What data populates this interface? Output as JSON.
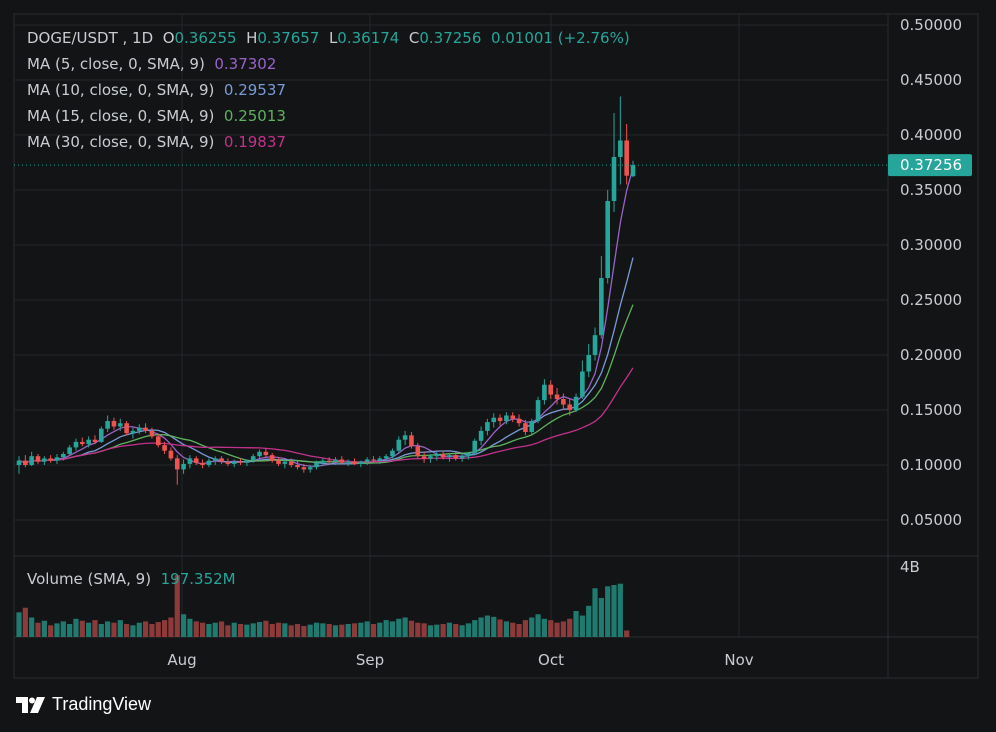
{
  "header": {
    "symbol": "DOGE/USDT",
    "interval": "1D",
    "open_label": "O",
    "open": "0.36255",
    "high_label": "H",
    "high": "0.37657",
    "low_label": "L",
    "low": "0.36174",
    "close_label": "C",
    "close": "0.37256",
    "change": "0.01001",
    "change_pct": "(+2.76%)"
  },
  "indicators": [
    {
      "label": "MA (5, close, 0, SMA, 9)",
      "value": "0.37302",
      "color": "#9a63c8"
    },
    {
      "label": "MA (10, close, 0, SMA, 9)",
      "value": "0.29537",
      "color": "#7a9bd6"
    },
    {
      "label": "MA (15, close, 0, SMA, 9)",
      "value": "0.25013",
      "color": "#5fb25e"
    },
    {
      "label": "MA (30, close, 0, SMA, 9)",
      "value": "0.19837",
      "color": "#c2328c"
    }
  ],
  "volume_legend": {
    "label": "Volume (SMA, 9)",
    "value": "197.352M"
  },
  "last_price_label": "0.37256",
  "volume_axis_label": "4B",
  "brand": "TradingView",
  "colors": {
    "up": "#26a69a",
    "down": "#ef5350",
    "text": "#c9ccd2",
    "grid": "#24262b",
    "background": "#131416"
  },
  "chart_data": {
    "type": "candlestick",
    "price_axis": {
      "ticks": [
        "0.50000",
        "0.45000",
        "0.40000",
        "0.35000",
        "0.30000",
        "0.25000",
        "0.20000",
        "0.15000",
        "0.10000",
        "0.05000"
      ],
      "ylim": [
        0.0,
        0.5
      ],
      "side": "right"
    },
    "time_axis": {
      "ticks": [
        "Aug",
        "Sep",
        "Oct",
        "Nov"
      ]
    },
    "candles": [
      {
        "o": 0.1,
        "h": 0.108,
        "l": 0.092,
        "c": 0.104
      },
      {
        "o": 0.104,
        "h": 0.109,
        "l": 0.098,
        "c": 0.1
      },
      {
        "o": 0.1,
        "h": 0.112,
        "l": 0.099,
        "c": 0.108
      },
      {
        "o": 0.108,
        "h": 0.11,
        "l": 0.101,
        "c": 0.103
      },
      {
        "o": 0.103,
        "h": 0.108,
        "l": 0.1,
        "c": 0.106
      },
      {
        "o": 0.106,
        "h": 0.109,
        "l": 0.102,
        "c": 0.104
      },
      {
        "o": 0.104,
        "h": 0.11,
        "l": 0.101,
        "c": 0.107
      },
      {
        "o": 0.107,
        "h": 0.112,
        "l": 0.104,
        "c": 0.11
      },
      {
        "o": 0.11,
        "h": 0.118,
        "l": 0.108,
        "c": 0.116
      },
      {
        "o": 0.116,
        "h": 0.124,
        "l": 0.113,
        "c": 0.121
      },
      {
        "o": 0.121,
        "h": 0.125,
        "l": 0.117,
        "c": 0.119
      },
      {
        "o": 0.119,
        "h": 0.126,
        "l": 0.116,
        "c": 0.123
      },
      {
        "o": 0.123,
        "h": 0.127,
        "l": 0.119,
        "c": 0.121
      },
      {
        "o": 0.121,
        "h": 0.135,
        "l": 0.12,
        "c": 0.133
      },
      {
        "o": 0.133,
        "h": 0.145,
        "l": 0.13,
        "c": 0.14
      },
      {
        "o": 0.14,
        "h": 0.143,
        "l": 0.132,
        "c": 0.135
      },
      {
        "o": 0.135,
        "h": 0.142,
        "l": 0.131,
        "c": 0.138
      },
      {
        "o": 0.138,
        "h": 0.14,
        "l": 0.127,
        "c": 0.129
      },
      {
        "o": 0.129,
        "h": 0.134,
        "l": 0.124,
        "c": 0.131
      },
      {
        "o": 0.131,
        "h": 0.137,
        "l": 0.128,
        "c": 0.134
      },
      {
        "o": 0.134,
        "h": 0.138,
        "l": 0.129,
        "c": 0.131
      },
      {
        "o": 0.131,
        "h": 0.134,
        "l": 0.124,
        "c": 0.126
      },
      {
        "o": 0.126,
        "h": 0.128,
        "l": 0.116,
        "c": 0.118
      },
      {
        "o": 0.118,
        "h": 0.121,
        "l": 0.11,
        "c": 0.113
      },
      {
        "o": 0.113,
        "h": 0.116,
        "l": 0.104,
        "c": 0.106
      },
      {
        "o": 0.106,
        "h": 0.109,
        "l": 0.082,
        "c": 0.096
      },
      {
        "o": 0.096,
        "h": 0.105,
        "l": 0.092,
        "c": 0.101
      },
      {
        "o": 0.101,
        "h": 0.109,
        "l": 0.097,
        "c": 0.106
      },
      {
        "o": 0.106,
        "h": 0.108,
        "l": 0.1,
        "c": 0.102
      },
      {
        "o": 0.102,
        "h": 0.105,
        "l": 0.097,
        "c": 0.1
      },
      {
        "o": 0.1,
        "h": 0.106,
        "l": 0.098,
        "c": 0.104
      },
      {
        "o": 0.104,
        "h": 0.108,
        "l": 0.1,
        "c": 0.106
      },
      {
        "o": 0.106,
        "h": 0.108,
        "l": 0.101,
        "c": 0.103
      },
      {
        "o": 0.103,
        "h": 0.106,
        "l": 0.099,
        "c": 0.101
      },
      {
        "o": 0.101,
        "h": 0.105,
        "l": 0.098,
        "c": 0.103
      },
      {
        "o": 0.103,
        "h": 0.106,
        "l": 0.1,
        "c": 0.102
      },
      {
        "o": 0.102,
        "h": 0.105,
        "l": 0.099,
        "c": 0.104
      },
      {
        "o": 0.104,
        "h": 0.11,
        "l": 0.102,
        "c": 0.108
      },
      {
        "o": 0.108,
        "h": 0.114,
        "l": 0.105,
        "c": 0.112
      },
      {
        "o": 0.112,
        "h": 0.115,
        "l": 0.107,
        "c": 0.109
      },
      {
        "o": 0.109,
        "h": 0.111,
        "l": 0.102,
        "c": 0.104
      },
      {
        "o": 0.104,
        "h": 0.107,
        "l": 0.099,
        "c": 0.101
      },
      {
        "o": 0.101,
        "h": 0.105,
        "l": 0.097,
        "c": 0.103
      },
      {
        "o": 0.103,
        "h": 0.106,
        "l": 0.098,
        "c": 0.1
      },
      {
        "o": 0.1,
        "h": 0.104,
        "l": 0.096,
        "c": 0.098
      },
      {
        "o": 0.098,
        "h": 0.101,
        "l": 0.093,
        "c": 0.096
      },
      {
        "o": 0.096,
        "h": 0.1,
        "l": 0.093,
        "c": 0.098
      },
      {
        "o": 0.098,
        "h": 0.104,
        "l": 0.096,
        "c": 0.102
      },
      {
        "o": 0.102,
        "h": 0.106,
        "l": 0.099,
        "c": 0.104
      },
      {
        "o": 0.104,
        "h": 0.107,
        "l": 0.1,
        "c": 0.103
      },
      {
        "o": 0.103,
        "h": 0.107,
        "l": 0.1,
        "c": 0.105
      },
      {
        "o": 0.105,
        "h": 0.108,
        "l": 0.101,
        "c": 0.102
      },
      {
        "o": 0.102,
        "h": 0.105,
        "l": 0.099,
        "c": 0.103
      },
      {
        "o": 0.103,
        "h": 0.106,
        "l": 0.1,
        "c": 0.101
      },
      {
        "o": 0.101,
        "h": 0.104,
        "l": 0.098,
        "c": 0.103
      },
      {
        "o": 0.103,
        "h": 0.107,
        "l": 0.1,
        "c": 0.105
      },
      {
        "o": 0.105,
        "h": 0.108,
        "l": 0.102,
        "c": 0.104
      },
      {
        "o": 0.104,
        "h": 0.108,
        "l": 0.101,
        "c": 0.106
      },
      {
        "o": 0.106,
        "h": 0.11,
        "l": 0.103,
        "c": 0.108
      },
      {
        "o": 0.108,
        "h": 0.115,
        "l": 0.106,
        "c": 0.113
      },
      {
        "o": 0.113,
        "h": 0.126,
        "l": 0.111,
        "c": 0.123
      },
      {
        "o": 0.123,
        "h": 0.131,
        "l": 0.118,
        "c": 0.127
      },
      {
        "o": 0.127,
        "h": 0.13,
        "l": 0.115,
        "c": 0.117
      },
      {
        "o": 0.117,
        "h": 0.12,
        "l": 0.106,
        "c": 0.108
      },
      {
        "o": 0.108,
        "h": 0.112,
        "l": 0.102,
        "c": 0.106
      },
      {
        "o": 0.106,
        "h": 0.11,
        "l": 0.102,
        "c": 0.108
      },
      {
        "o": 0.108,
        "h": 0.112,
        "l": 0.104,
        "c": 0.11
      },
      {
        "o": 0.11,
        "h": 0.113,
        "l": 0.105,
        "c": 0.107
      },
      {
        "o": 0.107,
        "h": 0.111,
        "l": 0.103,
        "c": 0.109
      },
      {
        "o": 0.109,
        "h": 0.112,
        "l": 0.104,
        "c": 0.106
      },
      {
        "o": 0.106,
        "h": 0.11,
        "l": 0.103,
        "c": 0.108
      },
      {
        "o": 0.108,
        "h": 0.112,
        "l": 0.105,
        "c": 0.111
      },
      {
        "o": 0.111,
        "h": 0.124,
        "l": 0.109,
        "c": 0.122
      },
      {
        "o": 0.122,
        "h": 0.135,
        "l": 0.118,
        "c": 0.131
      },
      {
        "o": 0.131,
        "h": 0.142,
        "l": 0.127,
        "c": 0.139
      },
      {
        "o": 0.139,
        "h": 0.147,
        "l": 0.134,
        "c": 0.143
      },
      {
        "o": 0.143,
        "h": 0.146,
        "l": 0.136,
        "c": 0.14
      },
      {
        "o": 0.14,
        "h": 0.148,
        "l": 0.137,
        "c": 0.145
      },
      {
        "o": 0.145,
        "h": 0.148,
        "l": 0.139,
        "c": 0.142
      },
      {
        "o": 0.142,
        "h": 0.146,
        "l": 0.135,
        "c": 0.138
      },
      {
        "o": 0.138,
        "h": 0.141,
        "l": 0.127,
        "c": 0.13
      },
      {
        "o": 0.13,
        "h": 0.142,
        "l": 0.128,
        "c": 0.14
      },
      {
        "o": 0.14,
        "h": 0.162,
        "l": 0.138,
        "c": 0.159
      },
      {
        "o": 0.159,
        "h": 0.178,
        "l": 0.155,
        "c": 0.173
      },
      {
        "o": 0.173,
        "h": 0.177,
        "l": 0.16,
        "c": 0.164
      },
      {
        "o": 0.164,
        "h": 0.17,
        "l": 0.155,
        "c": 0.16
      },
      {
        "o": 0.16,
        "h": 0.165,
        "l": 0.15,
        "c": 0.155
      },
      {
        "o": 0.155,
        "h": 0.16,
        "l": 0.145,
        "c": 0.15
      },
      {
        "o": 0.15,
        "h": 0.165,
        "l": 0.148,
        "c": 0.162
      },
      {
        "o": 0.162,
        "h": 0.195,
        "l": 0.16,
        "c": 0.185
      },
      {
        "o": 0.185,
        "h": 0.21,
        "l": 0.18,
        "c": 0.2
      },
      {
        "o": 0.2,
        "h": 0.225,
        "l": 0.195,
        "c": 0.218
      },
      {
        "o": 0.218,
        "h": 0.29,
        "l": 0.215,
        "c": 0.27
      },
      {
        "o": 0.27,
        "h": 0.35,
        "l": 0.265,
        "c": 0.34
      },
      {
        "o": 0.34,
        "h": 0.42,
        "l": 0.33,
        "c": 0.38
      },
      {
        "o": 0.38,
        "h": 0.435,
        "l": 0.355,
        "c": 0.395
      },
      {
        "o": 0.395,
        "h": 0.41,
        "l": 0.355,
        "c": 0.363
      },
      {
        "o": 0.36255,
        "h": 0.37657,
        "l": 0.36174,
        "c": 0.37256
      }
    ],
    "volume": [
      38,
      45,
      30,
      22,
      25,
      18,
      21,
      24,
      20,
      28,
      25,
      22,
      26,
      20,
      24,
      22,
      26,
      20,
      18,
      22,
      24,
      20,
      23,
      26,
      30,
      95,
      35,
      28,
      24,
      22,
      20,
      22,
      24,
      18,
      22,
      20,
      19,
      21,
      23,
      25,
      20,
      22,
      21,
      18,
      20,
      17,
      19,
      22,
      21,
      20,
      18,
      19,
      20,
      21,
      22,
      24,
      20,
      22,
      26,
      24,
      28,
      30,
      25,
      22,
      21,
      18,
      19,
      20,
      22,
      20,
      18,
      21,
      26,
      30,
      33,
      31,
      27,
      24,
      22,
      20,
      26,
      30,
      35,
      28,
      26,
      22,
      24,
      28,
      40,
      33,
      48,
      75,
      60,
      78,
      80,
      82,
      10
    ]
  }
}
